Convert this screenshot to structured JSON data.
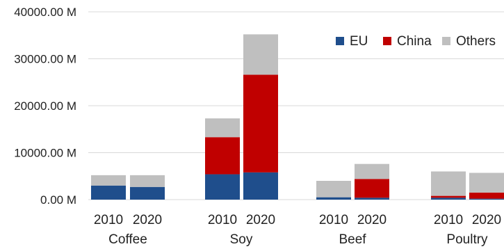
{
  "chart_data": {
    "type": "bar",
    "stacked": true,
    "groups": [
      "Coffee",
      "Soy",
      "Beef",
      "Poultry"
    ],
    "periods": [
      "2010",
      "2020"
    ],
    "categories": [
      "Coffee 2010",
      "Coffee 2020",
      "Soy 2010",
      "Soy 2020",
      "Beef 2010",
      "Beef 2020",
      "Poultry 2010",
      "Poultry 2020"
    ],
    "series": [
      {
        "name": "EU",
        "color": "#1f4e8c",
        "values": [
          3000,
          2700,
          5400,
          5800,
          500,
          400,
          400,
          200
        ]
      },
      {
        "name": "China",
        "color": "#c00000",
        "values": [
          0,
          0,
          7900,
          20800,
          0,
          4000,
          400,
          1300
        ]
      },
      {
        "name": "Others",
        "color": "#bfbfbf",
        "values": [
          2200,
          2500,
          4000,
          8600,
          3500,
          3200,
          5200,
          4200
        ]
      }
    ],
    "yticks": [
      "0.00 M",
      "10000.00 M",
      "20000.00 M",
      "30000.00 M",
      "40000.00 M"
    ],
    "ylim": [
      0,
      40000
    ],
    "grid": true,
    "legend_position": "top-right",
    "title": "",
    "xlabel": "",
    "ylabel": ""
  }
}
